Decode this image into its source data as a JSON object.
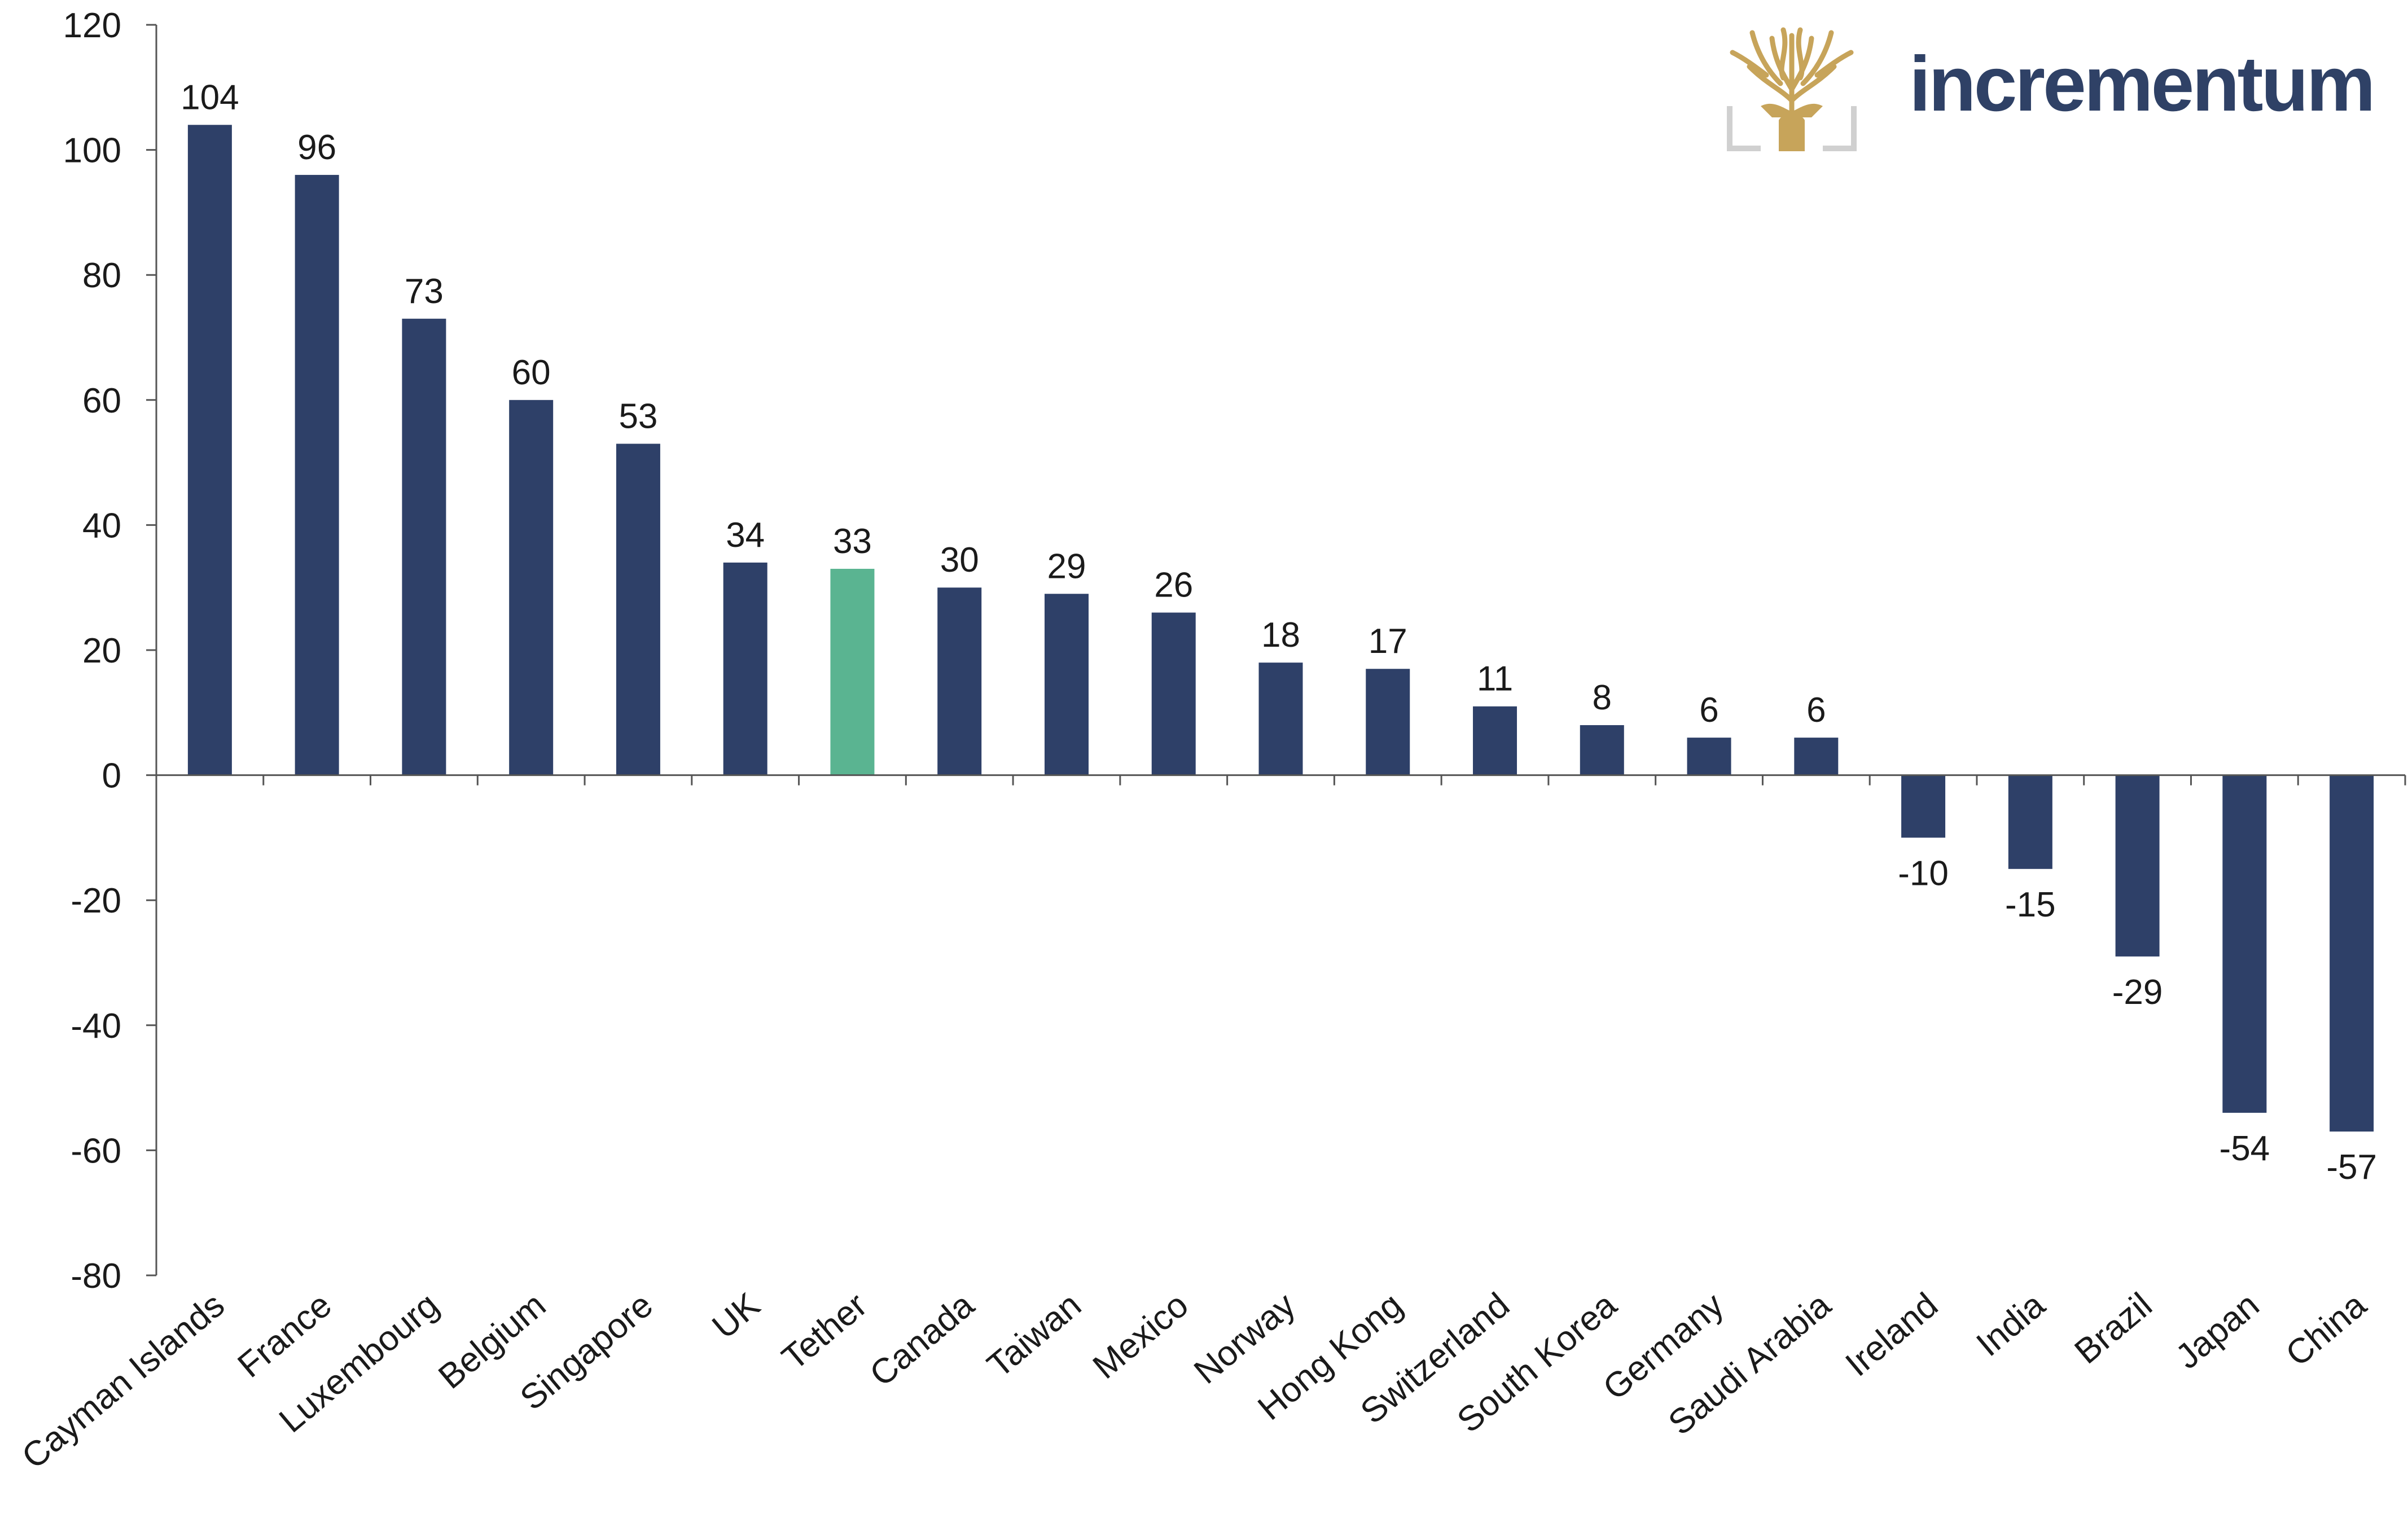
{
  "brand": {
    "name": "incrementum",
    "icon": "tree-logo-icon",
    "text_color": "#2f4166",
    "mark_color": "#c7a45a"
  },
  "chart_data": {
    "type": "bar",
    "categories": [
      "Cayman Islands",
      "France",
      "Luxembourg",
      "Belgium",
      "Singapore",
      "UK",
      "Tether",
      "Canada",
      "Taiwan",
      "Mexico",
      "Norway",
      "Hong Kong",
      "Switzerland",
      "South Korea",
      "Germany",
      "Saudi Arabia",
      "Ireland",
      "India",
      "Brazil",
      "Japan",
      "China"
    ],
    "values": [
      104,
      96,
      73,
      60,
      53,
      34,
      33,
      30,
      29,
      26,
      18,
      17,
      11,
      8,
      6,
      6,
      -10,
      -15,
      -29,
      -54,
      -57
    ],
    "data_labels": [
      "104",
      "96",
      "73",
      "60",
      "53",
      "34",
      "33",
      "30",
      "29",
      "26",
      "18",
      "17",
      "11",
      "8",
      "6",
      "6",
      "-10",
      "-15",
      "-29",
      "-54",
      "-57"
    ],
    "y_ticks": [
      120,
      100,
      80,
      60,
      40,
      20,
      0,
      -20,
      -40,
      -60,
      -80
    ],
    "y_tick_labels": [
      "120",
      "100",
      "80",
      "60",
      "40",
      "20",
      "0",
      "-20",
      "-40",
      "-60",
      "-80"
    ],
    "ylim": [
      -80,
      120
    ],
    "title": "",
    "xlabel": "",
    "ylabel": "",
    "grid": false,
    "legend": "none",
    "colors": {
      "bar": "#2e4068",
      "highlight": "#5ab491",
      "axis": "#555555",
      "text": "#1a1a1a"
    },
    "highlight_category": "Tether"
  }
}
